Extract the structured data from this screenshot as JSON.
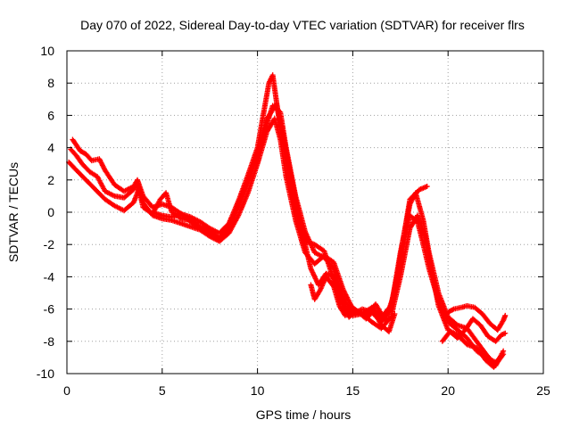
{
  "chart_data": {
    "type": "scatter",
    "title": "Day 070 of 2022, Sidereal Day-to-day VTEC variation (SDTVAR) for receiver flrs",
    "xlabel": "GPS time / hours",
    "ylabel": "SDTVAR / TECUs",
    "xlim": [
      0,
      25
    ],
    "ylim": [
      -10,
      10
    ],
    "xticks": [
      0,
      5,
      10,
      15,
      20,
      25
    ],
    "yticks": [
      -10,
      -8,
      -6,
      -4,
      -2,
      0,
      2,
      4,
      6,
      8,
      10
    ],
    "grid": true,
    "marker": "+",
    "series": [
      {
        "name": "SDTVAR satellite tracks",
        "color": "#ff0000",
        "tracks": [
          [
            [
              0.1,
              3.1
            ],
            [
              0.5,
              2.6
            ],
            [
              1.0,
              2.0
            ],
            [
              1.5,
              1.4
            ],
            [
              2.0,
              0.8
            ],
            [
              2.5,
              0.4
            ],
            [
              3.0,
              0.1
            ],
            [
              3.5,
              0.6
            ],
            [
              3.8,
              1.5
            ],
            [
              4.0,
              0.6
            ],
            [
              4.5,
              -0.2
            ],
            [
              5.0,
              -0.4
            ],
            [
              5.5,
              -0.5
            ],
            [
              6.0,
              -0.7
            ],
            [
              6.5,
              -0.9
            ],
            [
              7.0,
              -1.1
            ],
            [
              7.5,
              -1.5
            ],
            [
              8.0,
              -1.8
            ],
            [
              8.5,
              -1.3
            ],
            [
              9.0,
              -0.2
            ],
            [
              9.5,
              1.2
            ],
            [
              10.0,
              3.0
            ],
            [
              10.5,
              5.0
            ],
            [
              10.9,
              5.8
            ],
            [
              11.2,
              4.5
            ],
            [
              11.5,
              2.2
            ],
            [
              12.0,
              -0.5
            ],
            [
              12.5,
              -2.5
            ],
            [
              13.0,
              -3.2
            ],
            [
              13.5,
              -2.7
            ],
            [
              14.0,
              -3.1
            ],
            [
              14.5,
              -4.8
            ],
            [
              15.0,
              -6.0
            ],
            [
              15.5,
              -6.3
            ],
            [
              16.0,
              -5.9
            ],
            [
              16.5,
              -6.5
            ],
            [
              17.0,
              -5.8
            ],
            [
              17.5,
              -3.0
            ],
            [
              18.0,
              -0.2
            ],
            [
              18.4,
              -0.6
            ],
            [
              18.7,
              -2.0
            ],
            [
              19.0,
              -3.5
            ],
            [
              19.5,
              -5.5
            ],
            [
              20.0,
              -6.8
            ],
            [
              20.5,
              -7.3
            ],
            [
              21.0,
              -7.8
            ],
            [
              21.5,
              -8.6
            ],
            [
              22.0,
              -9.0
            ],
            [
              22.5,
              -9.3
            ],
            [
              22.8,
              -8.9
            ]
          ],
          [
            [
              0.2,
              3.9
            ],
            [
              0.5,
              3.5
            ],
            [
              0.8,
              3.0
            ],
            [
              1.2,
              2.5
            ],
            [
              1.6,
              2.2
            ],
            [
              2.0,
              1.3
            ],
            [
              2.5,
              1.0
            ],
            [
              3.0,
              0.9
            ],
            [
              3.5,
              1.4
            ],
            [
              3.7,
              1.8
            ],
            [
              4.0,
              0.3
            ],
            [
              4.5,
              -0.1
            ],
            [
              4.9,
              0.8
            ],
            [
              5.2,
              1.2
            ],
            [
              5.5,
              0.0
            ],
            [
              6.0,
              -0.4
            ],
            [
              6.5,
              -0.5
            ],
            [
              7.0,
              -0.9
            ],
            [
              7.5,
              -1.2
            ],
            [
              8.0,
              -1.6
            ],
            [
              8.5,
              -1.0
            ],
            [
              9.0,
              0.3
            ],
            [
              9.5,
              1.8
            ],
            [
              10.0,
              3.5
            ],
            [
              10.5,
              5.5
            ],
            [
              10.8,
              6.6
            ],
            [
              11.2,
              6.2
            ],
            [
              11.5,
              4.0
            ],
            [
              12.0,
              1.0
            ],
            [
              12.5,
              -1.2
            ],
            [
              13.0,
              -2.5
            ],
            [
              13.5,
              -2.8
            ],
            [
              14.0,
              -3.5
            ],
            [
              14.5,
              -5.3
            ],
            [
              15.0,
              -6.3
            ],
            [
              15.5,
              -6.0
            ],
            [
              16.0,
              -6.2
            ],
            [
              16.5,
              -6.8
            ],
            [
              17.0,
              -6.0
            ],
            [
              17.5,
              -2.5
            ],
            [
              18.0,
              0.5
            ],
            [
              18.3,
              1.2
            ],
            [
              18.7,
              -0.5
            ],
            [
              19.0,
              -2.5
            ],
            [
              19.5,
              -5.0
            ],
            [
              20.0,
              -6.5
            ],
            [
              20.5,
              -7.0
            ],
            [
              21.0,
              -7.2
            ],
            [
              21.5,
              -8.0
            ],
            [
              22.0,
              -8.8
            ],
            [
              22.5,
              -9.5
            ],
            [
              22.9,
              -8.6
            ]
          ],
          [
            [
              0.3,
              4.5
            ],
            [
              0.7,
              3.8
            ],
            [
              1.0,
              3.6
            ],
            [
              1.3,
              3.2
            ],
            [
              1.7,
              3.3
            ],
            [
              2.0,
              2.6
            ],
            [
              2.5,
              1.7
            ],
            [
              3.0,
              1.3
            ],
            [
              3.5,
              1.6
            ],
            [
              3.7,
              2.0
            ],
            [
              4.0,
              1.0
            ],
            [
              4.5,
              0.3
            ],
            [
              5.0,
              0.5
            ],
            [
              5.5,
              0.3
            ],
            [
              6.0,
              -0.1
            ],
            [
              6.5,
              -0.3
            ],
            [
              7.0,
              -0.6
            ],
            [
              7.5,
              -1.0
            ],
            [
              8.0,
              -1.3
            ],
            [
              8.5,
              -0.7
            ],
            [
              9.0,
              0.7
            ],
            [
              9.5,
              2.3
            ],
            [
              10.0,
              4.0
            ],
            [
              10.3,
              6.0
            ],
            [
              10.6,
              8.0
            ],
            [
              10.8,
              8.5
            ],
            [
              11.1,
              6.0
            ],
            [
              11.5,
              3.0
            ],
            [
              12.0,
              0.0
            ],
            [
              12.5,
              -1.8
            ],
            [
              13.0,
              -2.0
            ],
            [
              13.5,
              -2.4
            ],
            [
              14.0,
              -4.2
            ],
            [
              14.5,
              -5.8
            ],
            [
              15.0,
              -6.4
            ],
            [
              15.5,
              -6.3
            ],
            [
              16.0,
              -6.8
            ],
            [
              16.5,
              -7.2
            ],
            [
              17.0,
              -6.5
            ],
            [
              17.5,
              -4.0
            ],
            [
              18.0,
              -1.0
            ],
            [
              18.4,
              -0.2
            ],
            [
              18.8,
              -1.5
            ],
            [
              19.2,
              -4.0
            ],
            [
              19.5,
              -5.8
            ],
            [
              20.0,
              -7.3
            ],
            [
              20.5,
              -7.6
            ],
            [
              21.0,
              -8.2
            ],
            [
              21.5,
              -8.4
            ],
            [
              22.0,
              -9.2
            ],
            [
              22.4,
              -9.6
            ],
            [
              22.9,
              -8.8
            ]
          ],
          [
            [
              4.5,
              0.0
            ],
            [
              5.0,
              -0.2
            ],
            [
              5.5,
              -0.3
            ],
            [
              6.0,
              -0.1
            ],
            [
              6.5,
              -0.6
            ],
            [
              7.0,
              -1.0
            ],
            [
              7.5,
              -1.3
            ],
            [
              8.0,
              -1.7
            ],
            [
              8.5,
              -0.9
            ],
            [
              9.0,
              0.5
            ],
            [
              9.5,
              2.0
            ],
            [
              10.0,
              3.7
            ],
            [
              10.5,
              5.8
            ],
            [
              11.0,
              6.7
            ],
            [
              11.3,
              5.0
            ],
            [
              11.6,
              3.2
            ],
            [
              12.0,
              0.8
            ],
            [
              12.4,
              -1.5
            ],
            [
              12.8,
              -3.5
            ],
            [
              13.2,
              -4.5
            ],
            [
              13.6,
              -3.8
            ],
            [
              14.0,
              -4.0
            ],
            [
              14.4,
              -5.5
            ],
            [
              14.8,
              -6.5
            ],
            [
              15.2,
              -6.1
            ],
            [
              15.7,
              -6.4
            ],
            [
              16.2,
              -5.7
            ],
            [
              16.7,
              -6.7
            ],
            [
              17.2,
              -5.0
            ],
            [
              17.6,
              -2.0
            ],
            [
              18.0,
              0.8
            ],
            [
              18.5,
              1.4
            ],
            [
              18.9,
              1.6
            ]
          ],
          [
            [
              12.8,
              -4.5
            ],
            [
              13.0,
              -5.4
            ],
            [
              13.3,
              -4.8
            ],
            [
              13.6,
              -4.0
            ],
            [
              14.0,
              -4.6
            ],
            [
              14.3,
              -5.8
            ],
            [
              14.6,
              -6.4
            ],
            [
              14.9,
              -5.8
            ],
            [
              15.3,
              -6.2
            ],
            [
              15.7,
              -6.6
            ],
            [
              16.1,
              -6.1
            ],
            [
              16.5,
              -7.0
            ],
            [
              16.9,
              -7.4
            ],
            [
              17.2,
              -6.3
            ]
          ],
          [
            [
              20.0,
              -6.2
            ],
            [
              20.3,
              -6.0
            ],
            [
              20.7,
              -5.9
            ],
            [
              21.0,
              -5.8
            ],
            [
              21.4,
              -5.9
            ],
            [
              21.8,
              -6.3
            ],
            [
              22.2,
              -6.9
            ],
            [
              22.6,
              -7.3
            ],
            [
              22.9,
              -6.7
            ],
            [
              23.0,
              -6.4
            ]
          ],
          [
            [
              19.7,
              -8.0
            ],
            [
              20.1,
              -7.4
            ],
            [
              20.5,
              -7.8
            ],
            [
              20.9,
              -7.3
            ],
            [
              21.3,
              -6.6
            ],
            [
              21.7,
              -7.0
            ],
            [
              22.1,
              -7.7
            ],
            [
              22.5,
              -8.0
            ],
            [
              22.8,
              -7.6
            ],
            [
              23.0,
              -7.5
            ]
          ]
        ]
      }
    ]
  }
}
